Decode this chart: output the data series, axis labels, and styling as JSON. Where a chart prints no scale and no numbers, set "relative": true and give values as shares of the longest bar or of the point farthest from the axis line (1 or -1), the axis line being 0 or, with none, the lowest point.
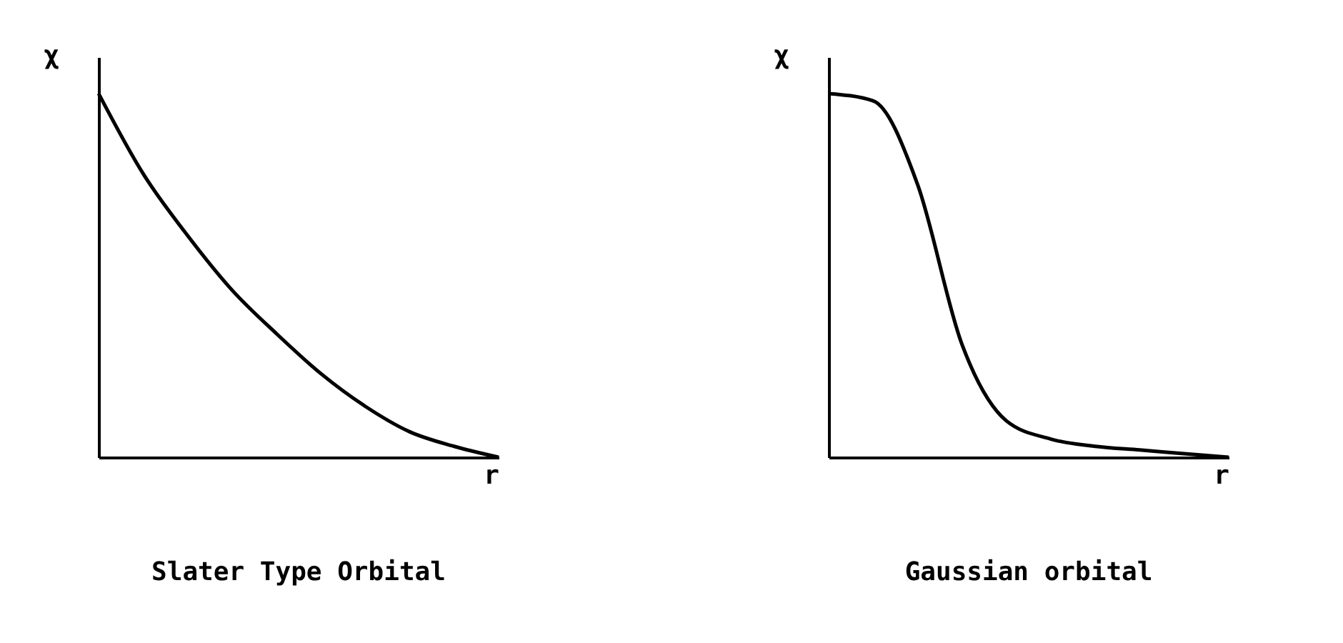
{
  "chart_data": [
    {
      "type": "line",
      "title": "Slater Type Orbital",
      "xlabel": "r",
      "ylabel": "χ",
      "categories": [
        null,
        null,
        null,
        null,
        null,
        null,
        null,
        null,
        null,
        null
      ],
      "values": [
        1,
        0.78,
        0.61,
        0.46,
        0.34,
        0.23,
        0.14,
        0.07,
        0.03,
        0
      ],
      "color": "#000000",
      "relative": true,
      "tick_labels": false
    },
    {
      "type": "line",
      "title": "Gaussian orbital",
      "xlabel": "r",
      "ylabel": "χ",
      "categories": [
        null,
        null,
        null,
        null,
        null,
        null,
        null,
        null,
        null,
        null
      ],
      "values": [
        1,
        0.98,
        0.75,
        0.31,
        0.1,
        0.05,
        0.03,
        0.02,
        0.01,
        0
      ],
      "color": "#000000",
      "relative": true,
      "tick_labels": false
    }
  ]
}
